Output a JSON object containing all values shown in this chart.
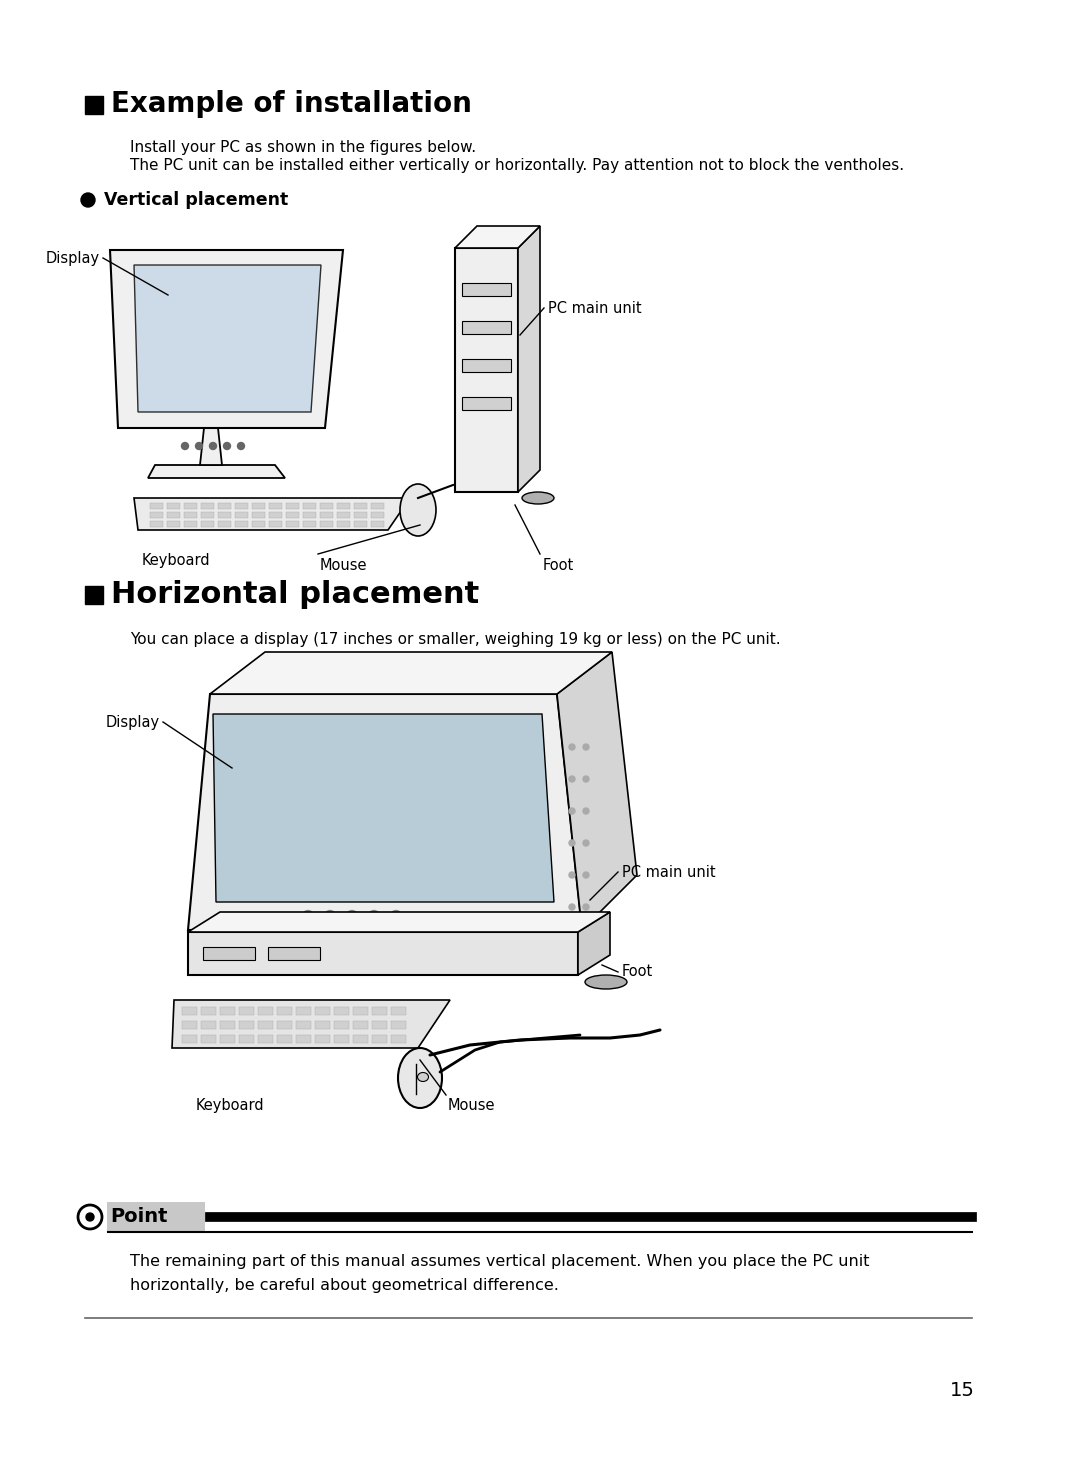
{
  "page_number": "15",
  "bg_color": "#ffffff",
  "title1": "Example of installation",
  "title2": "Horizontal placement",
  "subtitle1": "Vertical placement",
  "body_text1": "Install your PC as shown in the figures below.",
  "body_text2": "The PC unit can be installed either vertically or horizontally. Pay attention not to block the ventholes.",
  "body_text3": "You can place a display (17 inches or smaller, weighing 19 kg or less) on the PC unit.",
  "point_text1": "The remaining part of this manual assumes vertical placement. When you place the PC unit",
  "point_text2": "horizontally, be careful about geometrical difference.",
  "point_label": "Point",
  "fig1_labels": {
    "display": "Display",
    "keyboard": "Keyboard",
    "mouse": "Mouse",
    "pc_main": "PC main unit",
    "foot": "Foot"
  },
  "fig2_labels": {
    "display": "Display",
    "keyboard": "Keyboard",
    "mouse": "Mouse",
    "pc_main": "PC main unit",
    "foot": "Foot"
  }
}
